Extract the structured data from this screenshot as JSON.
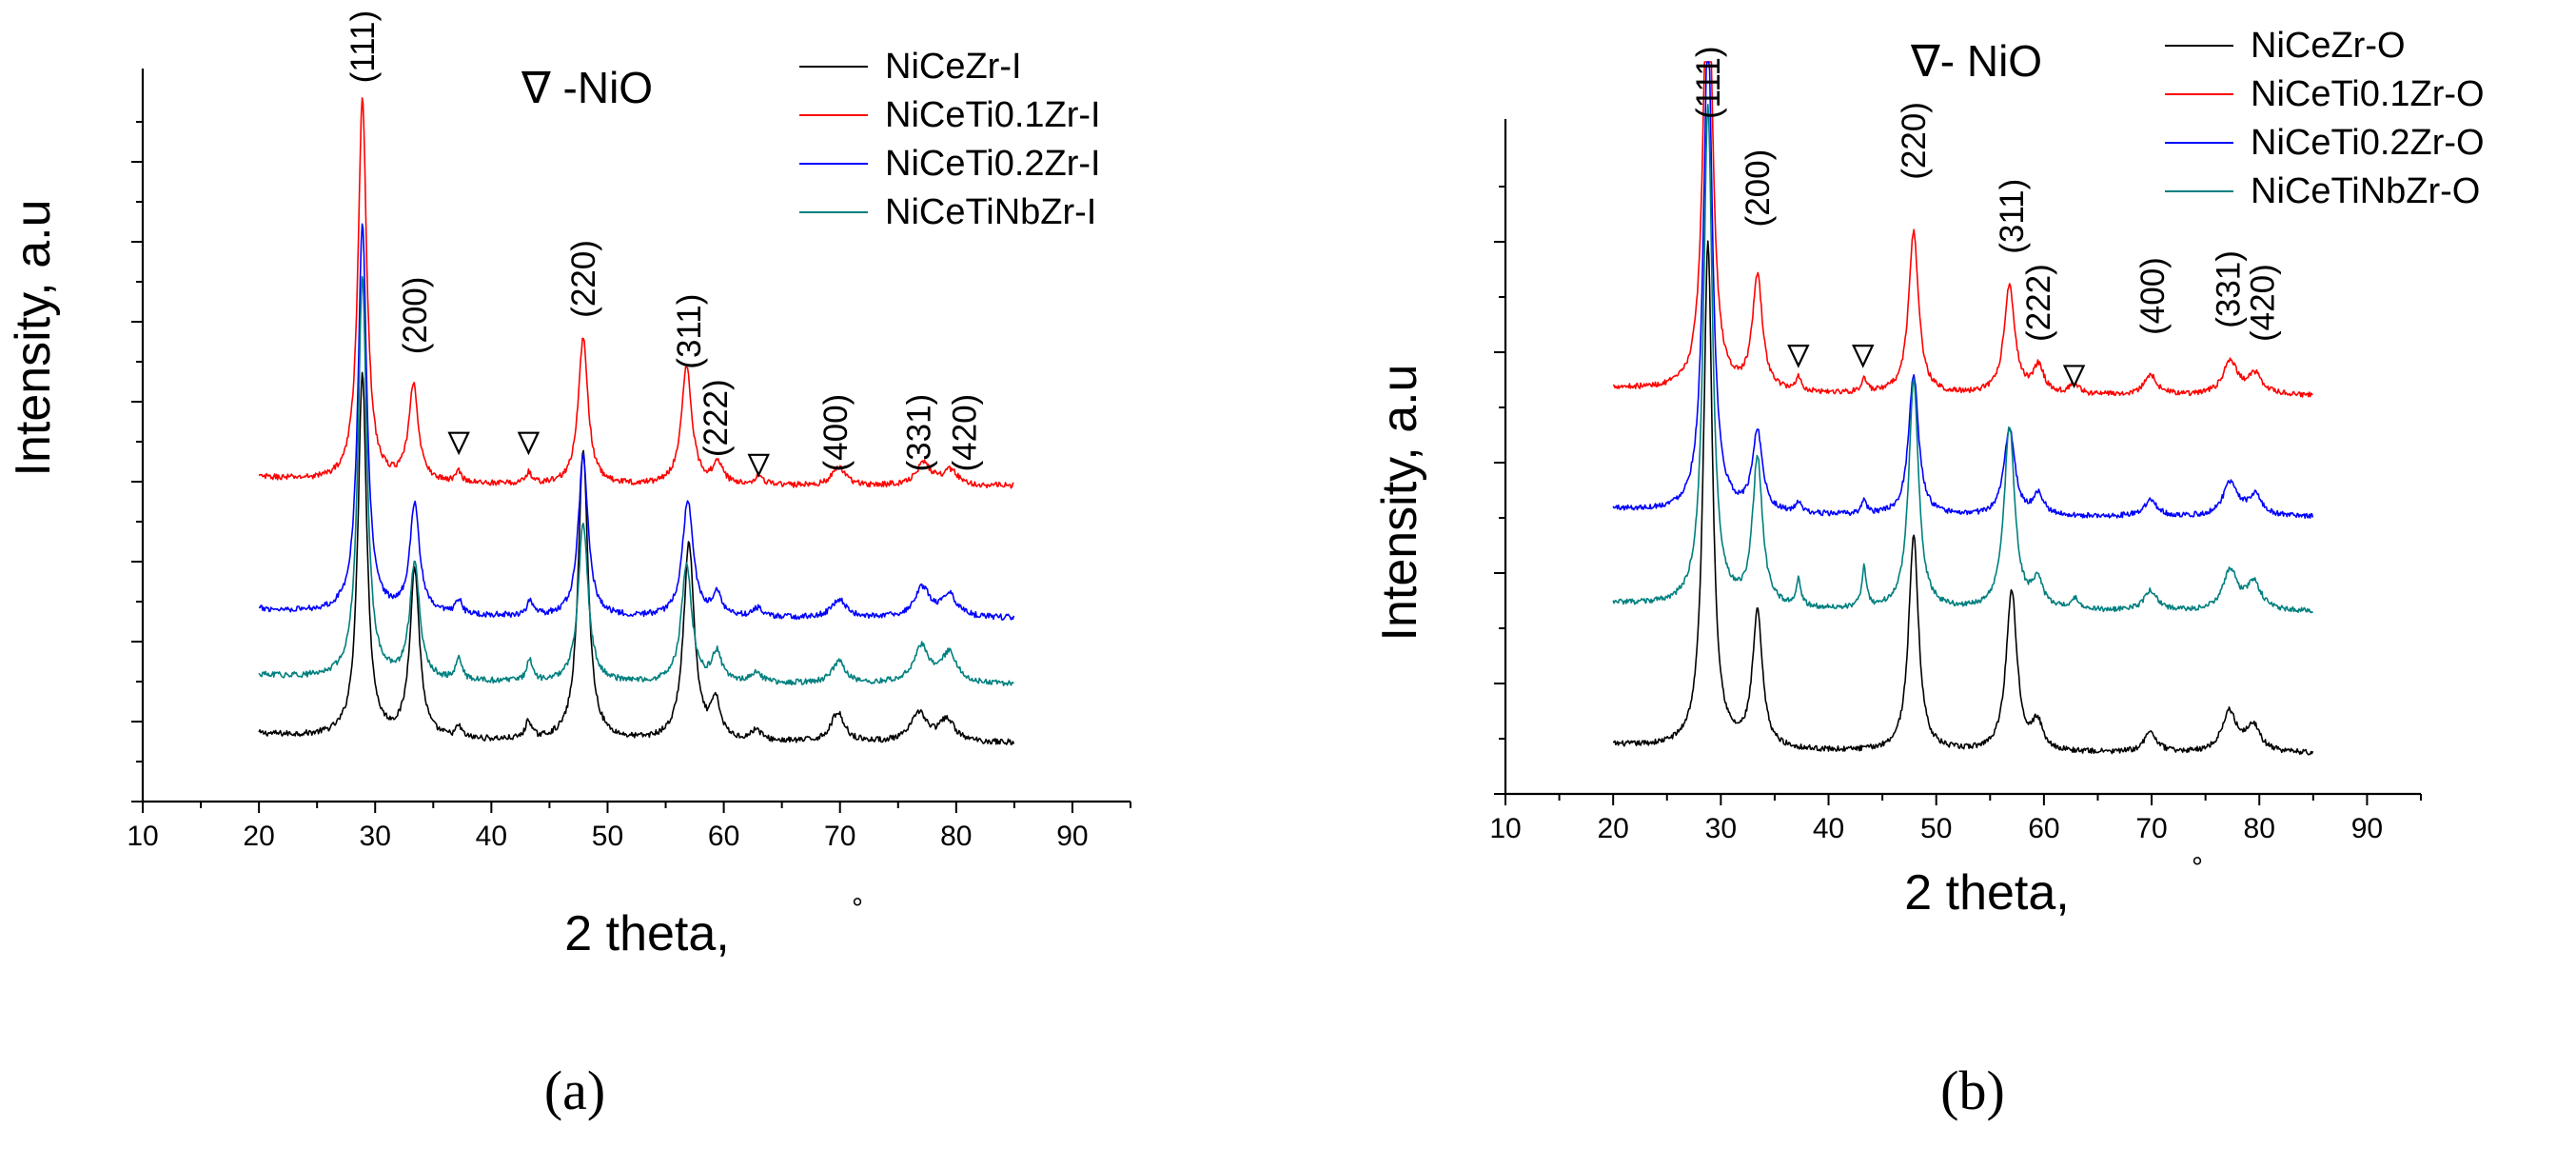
{
  "chart_data": [
    {
      "type": "line",
      "panel_label": "(a)",
      "title": "∇ -NiO",
      "xlabel": "2 theta,°",
      "ylabel": "Intensity, a.u",
      "xlim": [
        10,
        95
      ],
      "xticks": [
        "10",
        "20",
        "30",
        "40",
        "50",
        "60",
        "70",
        "80",
        "90"
      ],
      "yticks_labeled": false,
      "legend_position": "top-right",
      "legend_title": "",
      "series": [
        {
          "name": "NiCeZr-I",
          "color": "#000000",
          "baseline": 0.08,
          "noise": 0.004,
          "peaks": [
            [
              28.9,
              0.5,
              0.45
            ],
            [
              33.4,
              0.23,
              0.5
            ],
            [
              37.2,
              0.015,
              0.3
            ],
            [
              43.2,
              0.025,
              0.3
            ],
            [
              47.9,
              0.4,
              0.5
            ],
            [
              57.0,
              0.27,
              0.55
            ],
            [
              59.3,
              0.05,
              0.5
            ],
            [
              62.8,
              0.015,
              0.5
            ],
            [
              69.8,
              0.04,
              0.7
            ],
            [
              76.8,
              0.04,
              0.8
            ],
            [
              79.2,
              0.03,
              0.8
            ]
          ]
        },
        {
          "name": "NiCeTi0.1Zr-I",
          "color": "#ff0000",
          "baseline": 0.43,
          "noise": 0.004,
          "peaks": [
            [
              28.9,
              0.52,
              0.45
            ],
            [
              33.3,
              0.13,
              0.5
            ],
            [
              37.2,
              0.015,
              0.3
            ],
            [
              43.2,
              0.015,
              0.3
            ],
            [
              47.9,
              0.2,
              0.5
            ],
            [
              56.8,
              0.16,
              0.55
            ],
            [
              59.5,
              0.03,
              0.5
            ],
            [
              63.0,
              0.012,
              0.5
            ],
            [
              69.9,
              0.025,
              0.7
            ],
            [
              77.2,
              0.03,
              0.8
            ],
            [
              79.5,
              0.02,
              0.8
            ]
          ]
        },
        {
          "name": "NiCeTi0.2Zr-I",
          "color": "#0000ff",
          "baseline": 0.25,
          "noise": 0.004,
          "peaks": [
            [
              28.9,
              0.53,
              0.45
            ],
            [
              33.4,
              0.15,
              0.5
            ],
            [
              37.2,
              0.02,
              0.3
            ],
            [
              43.3,
              0.02,
              0.3
            ],
            [
              47.9,
              0.22,
              0.5
            ],
            [
              56.9,
              0.16,
              0.55
            ],
            [
              59.4,
              0.03,
              0.5
            ],
            [
              62.9,
              0.012,
              0.5
            ],
            [
              69.9,
              0.025,
              0.7
            ],
            [
              77.1,
              0.04,
              0.8
            ],
            [
              79.4,
              0.03,
              0.8
            ]
          ]
        },
        {
          "name": "NiCeTiNbZr-I",
          "color": "#007f7f",
          "baseline": 0.16,
          "noise": 0.004,
          "peaks": [
            [
              28.9,
              0.55,
              0.45
            ],
            [
              33.4,
              0.16,
              0.5
            ],
            [
              37.2,
              0.03,
              0.3
            ],
            [
              43.3,
              0.03,
              0.3
            ],
            [
              47.9,
              0.22,
              0.5
            ],
            [
              56.8,
              0.16,
              0.55
            ],
            [
              59.4,
              0.04,
              0.5
            ],
            [
              62.8,
              0.015,
              0.5
            ],
            [
              69.9,
              0.03,
              0.7
            ],
            [
              77.0,
              0.05,
              0.8
            ],
            [
              79.4,
              0.04,
              0.8
            ]
          ]
        }
      ],
      "annotations": [
        {
          "text": "(111)",
          "x": 28.9,
          "y": 0.98
        },
        {
          "text": "(200)",
          "x": 33.4,
          "y": 0.61
        },
        {
          "text": "(220)",
          "x": 47.9,
          "y": 0.66
        },
        {
          "text": "(311)",
          "x": 57.0,
          "y": 0.59
        },
        {
          "text": "(222)",
          "x": 59.3,
          "y": 0.47
        },
        {
          "text": "(400)",
          "x": 69.6,
          "y": 0.45
        },
        {
          "text": "(331)",
          "x": 76.8,
          "y": 0.45
        },
        {
          "text": "(420)",
          "x": 80.7,
          "y": 0.45
        }
      ],
      "markers": [
        {
          "symbol": "∇",
          "x": 37.2,
          "y": 0.49
        },
        {
          "symbol": "∇",
          "x": 43.2,
          "y": 0.49
        },
        {
          "symbol": "∇",
          "x": 63.0,
          "y": 0.46
        }
      ]
    },
    {
      "type": "line",
      "panel_label": "(b)",
      "title": "∇- NiO",
      "xlabel": "2 theta,°",
      "ylabel": "Intensity, a.u",
      "xlim": [
        10,
        95
      ],
      "xticks": [
        "10",
        "20",
        "30",
        "40",
        "50",
        "60",
        "70",
        "80",
        "90"
      ],
      "yticks_labeled": false,
      "legend_position": "top-right",
      "series": [
        {
          "name": "NiCeZr-O",
          "color": "#000000",
          "baseline": 0.06,
          "noise": 0.004,
          "peaks": [
            [
              28.8,
              0.75,
              0.5
            ],
            [
              33.4,
              0.2,
              0.55
            ],
            [
              47.9,
              0.32,
              0.55
            ],
            [
              57.0,
              0.24,
              0.6
            ],
            [
              59.4,
              0.04,
              0.6
            ],
            [
              69.9,
              0.03,
              0.7
            ],
            [
              77.2,
              0.06,
              0.8
            ],
            [
              79.4,
              0.04,
              0.8
            ]
          ]
        },
        {
          "name": "NiCeTi0.1Zr-O",
          "color": "#ff0000",
          "baseline": 0.59,
          "noise": 0.004,
          "peaks": [
            [
              28.8,
              0.7,
              0.5
            ],
            [
              33.4,
              0.17,
              0.55
            ],
            [
              37.2,
              0.02,
              0.3
            ],
            [
              43.3,
              0.02,
              0.3
            ],
            [
              47.9,
              0.24,
              0.55
            ],
            [
              56.8,
              0.16,
              0.6
            ],
            [
              59.5,
              0.04,
              0.6
            ],
            [
              62.8,
              0.015,
              0.5
            ],
            [
              69.9,
              0.03,
              0.7
            ],
            [
              77.3,
              0.05,
              0.8
            ],
            [
              79.6,
              0.03,
              0.8
            ]
          ]
        },
        {
          "name": "NiCeTi0.2Zr-O",
          "color": "#0000ff",
          "baseline": 0.41,
          "noise": 0.004,
          "peaks": [
            [
              28.8,
              0.72,
              0.5
            ],
            [
              33.4,
              0.12,
              0.55
            ],
            [
              37.2,
              0.015,
              0.3
            ],
            [
              43.3,
              0.02,
              0.3
            ],
            [
              47.9,
              0.21,
              0.55
            ],
            [
              56.8,
              0.13,
              0.6
            ],
            [
              59.5,
              0.03,
              0.6
            ],
            [
              69.9,
              0.025,
              0.7
            ],
            [
              77.3,
              0.05,
              0.8
            ],
            [
              79.6,
              0.03,
              0.8
            ]
          ]
        },
        {
          "name": "NiCeTiNbZr-O",
          "color": "#007f7f",
          "baseline": 0.27,
          "noise": 0.004,
          "peaks": [
            [
              28.8,
              0.74,
              0.5
            ],
            [
              33.4,
              0.22,
              0.55
            ],
            [
              37.2,
              0.04,
              0.25
            ],
            [
              43.3,
              0.06,
              0.25
            ],
            [
              47.9,
              0.34,
              0.55
            ],
            [
              56.8,
              0.27,
              0.6
            ],
            [
              59.4,
              0.04,
              0.6
            ],
            [
              62.9,
              0.015,
              0.5
            ],
            [
              69.9,
              0.03,
              0.7
            ],
            [
              77.3,
              0.06,
              0.8
            ],
            [
              79.5,
              0.04,
              0.8
            ]
          ]
        }
      ],
      "annotations": [
        {
          "text": "(111)",
          "x": 28.8,
          "y": 1.0
        },
        {
          "text": "(200)",
          "x": 33.4,
          "y": 0.84
        },
        {
          "text": "(220)",
          "x": 47.9,
          "y": 0.91
        },
        {
          "text": "(311)",
          "x": 57.0,
          "y": 0.8
        },
        {
          "text": "(222)",
          "x": 59.5,
          "y": 0.67
        },
        {
          "text": "(400)",
          "x": 70.1,
          "y": 0.68
        },
        {
          "text": "(331)",
          "x": 77.1,
          "y": 0.69
        },
        {
          "text": "(420)",
          "x": 80.3,
          "y": 0.67
        }
      ],
      "markers": [
        {
          "symbol": "∇",
          "x": 37.2,
          "y": 0.65
        },
        {
          "symbol": "∇",
          "x": 43.2,
          "y": 0.65
        },
        {
          "symbol": "∇",
          "x": 62.8,
          "y": 0.62
        }
      ]
    }
  ]
}
